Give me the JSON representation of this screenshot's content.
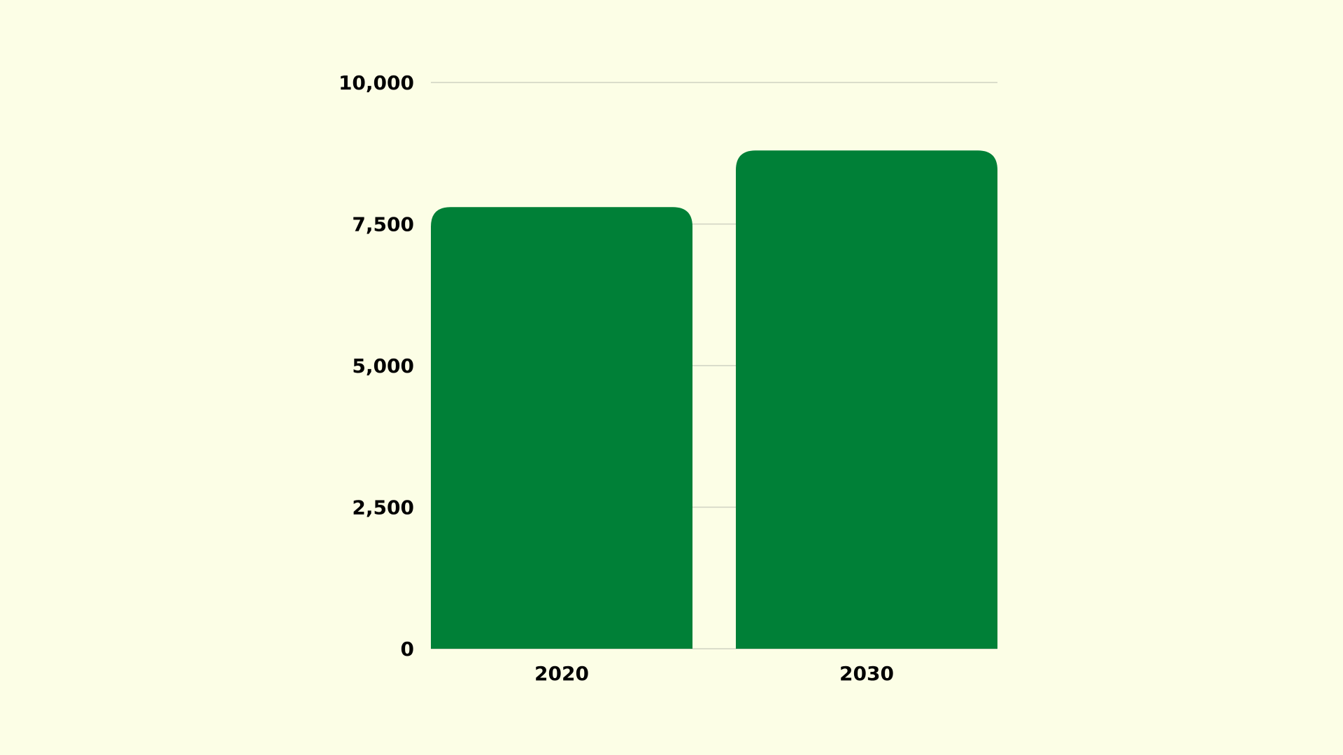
{
  "colors": {
    "background": "#fcfee6",
    "bar": "#008037",
    "grid": "#cfd2c2",
    "text": "#000000"
  },
  "chart_data": {
    "type": "bar",
    "title": "",
    "xlabel": "",
    "ylabel": "",
    "categories": [
      "2020",
      "2030"
    ],
    "values": [
      7800,
      8800
    ],
    "ylim": [
      0,
      10000
    ],
    "yticks": [
      0,
      2500,
      5000,
      7500,
      10000
    ],
    "ytick_labels": [
      "0",
      "2,500",
      "5,000",
      "7,500",
      "10,000"
    ],
    "grid": true,
    "legend": "none"
  }
}
